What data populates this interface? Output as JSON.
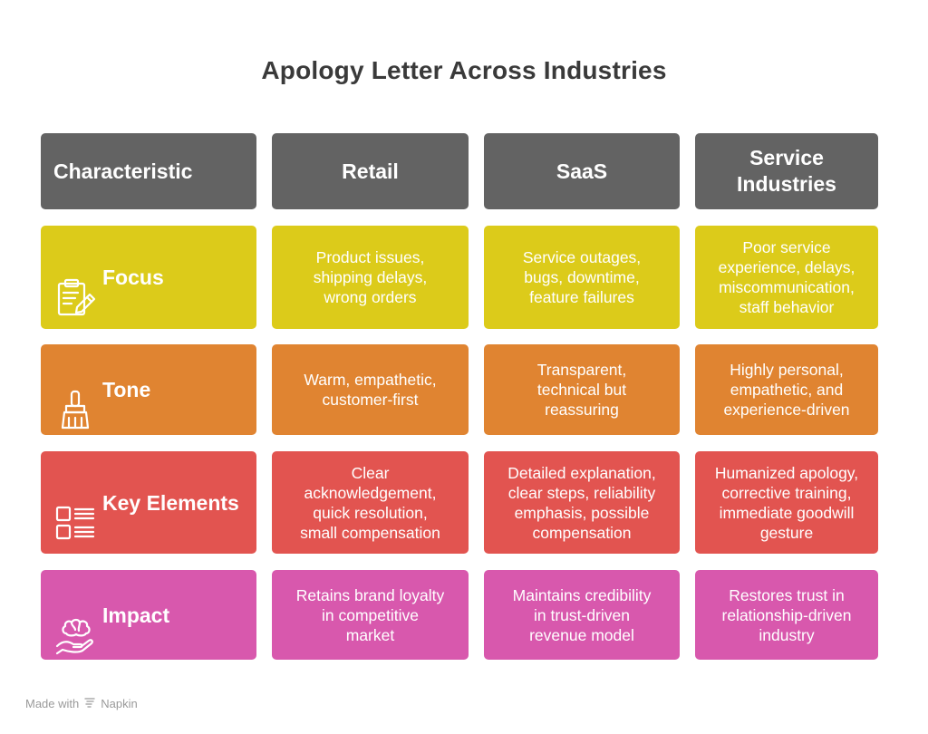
{
  "title": "Apology Letter Across Industries",
  "colors": {
    "header": "#636363",
    "focus": "#dccb1a",
    "tone": "#e08431",
    "key_elements": "#e25450",
    "impact": "#d858ad"
  },
  "headers": {
    "characteristic": "Characteristic",
    "retail": "Retail",
    "saas": "SaaS",
    "service": "Service\nIndustries"
  },
  "rows": {
    "focus": {
      "label": "Focus",
      "icon": "clipboard-pencil-icon",
      "retail": "Product issues,\nshipping delays,\nwrong orders",
      "saas": "Service outages,\nbugs, downtime,\nfeature failures",
      "service": "Poor service\nexperience, delays,\nmiscommunication,\nstaff behavior"
    },
    "tone": {
      "label": "Tone",
      "icon": "paintbrush-icon",
      "retail": "Warm, empathetic,\ncustomer-first",
      "saas": "Transparent,\ntechnical but\nreassuring",
      "service": "Highly personal,\nempathetic, and\nexperience-driven"
    },
    "key_elements": {
      "label": "Key Elements",
      "icon": "checklist-icon",
      "retail": "Clear\nacknowledgement,\nquick resolution,\nsmall compensation",
      "saas": "Detailed explanation,\nclear steps, reliability\nemphasis, possible\ncompensation",
      "service": "Humanized apology,\ncorrective training,\nimmediate goodwill\ngesture"
    },
    "impact": {
      "label": "Impact",
      "icon": "brain-in-hand-icon",
      "retail": "Retains brand loyalty\nin competitive\nmarket",
      "saas": "Maintains credibility\nin trust-driven\nrevenue model",
      "service": "Restores trust in\nrelationship-driven\nindustry"
    }
  },
  "watermark": {
    "prefix": "Made with",
    "brand": "Napkin",
    "icon": "napkin-logo-icon"
  }
}
